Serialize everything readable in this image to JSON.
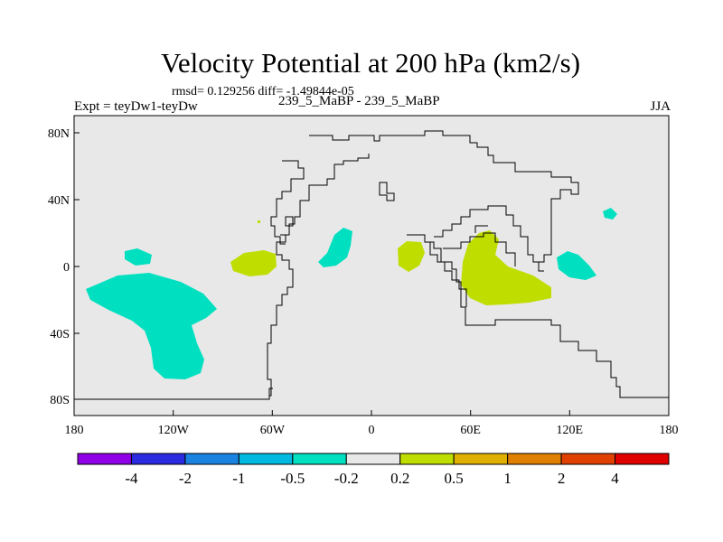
{
  "title": "Velocity Potential at 200 hPa (km2/s)",
  "stats": "rmsd= 0.129256  diff= -1.49844e-05",
  "expt": "Expt = teyDw1-teyDw",
  "cases": "239_5_MaBP - 239_5_MaBP",
  "season": "JJA",
  "colors": {
    "background": "#e8e8e8",
    "positive_small": "#c0dd00",
    "negative_small": "#00e0c0",
    "outline": "#000000"
  },
  "map": {
    "lon_ticks": [
      "180",
      "120W",
      "60W",
      "0",
      "60E",
      "120E",
      "180"
    ],
    "lat_ticks": [
      "80N",
      "40N",
      "0",
      "40S",
      "80S"
    ]
  },
  "colorbar": {
    "colors": [
      "#8f00e6",
      "#2b2be0",
      "#1a82e0",
      "#00b9e0",
      "#00e0c0",
      "#e8e8e8",
      "#c0dd00",
      "#e0b000",
      "#e08000",
      "#e04000",
      "#e00000"
    ],
    "labels": [
      "-4",
      "-2",
      "-1",
      "-0.5",
      "-0.2",
      "0.2",
      "0.5",
      "1",
      "2",
      "4"
    ]
  }
}
